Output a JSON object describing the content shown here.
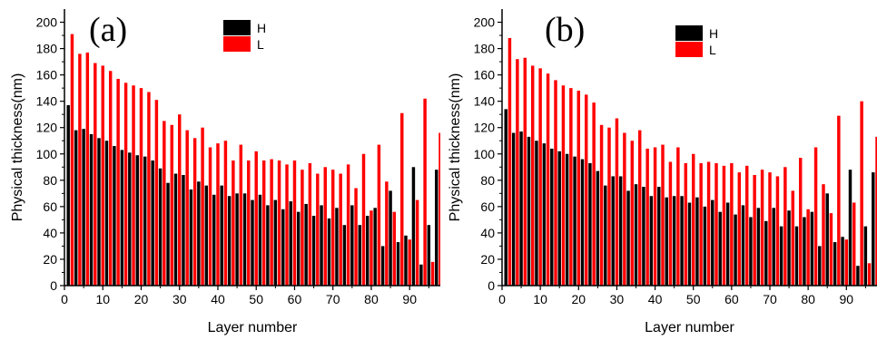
{
  "chart_data": [
    {
      "type": "bar",
      "panel_label": "(a)",
      "xlabel": "Layer number",
      "ylabel": "Physical thickness(nm)",
      "xlim": [
        0,
        98
      ],
      "ylim": [
        0,
        210
      ],
      "xticks": [
        0,
        10,
        20,
        30,
        40,
        50,
        60,
        70,
        80,
        90
      ],
      "yticks": [
        0,
        20,
        40,
        60,
        80,
        100,
        120,
        140,
        160,
        180,
        200
      ],
      "legend": {
        "position": "top-center"
      },
      "series": [
        {
          "name": "H",
          "color": "#000000",
          "x": [
            1,
            3,
            5,
            7,
            9,
            11,
            13,
            15,
            17,
            19,
            21,
            23,
            25,
            27,
            29,
            31,
            33,
            35,
            37,
            39,
            41,
            43,
            45,
            47,
            49,
            51,
            53,
            55,
            57,
            59,
            61,
            63,
            65,
            67,
            69,
            71,
            73,
            75,
            77,
            79,
            81,
            83,
            85,
            87,
            89,
            91,
            93,
            95,
            97
          ],
          "values": [
            137,
            118,
            119,
            115,
            112,
            110,
            106,
            103,
            101,
            99,
            98,
            95,
            89,
            78,
            85,
            84,
            73,
            79,
            76,
            69,
            76,
            68,
            70,
            70,
            65,
            69,
            61,
            65,
            58,
            64,
            56,
            62,
            53,
            61,
            51,
            59,
            46,
            61,
            46,
            53,
            59,
            30,
            72,
            33,
            38,
            90,
            16,
            46,
            88
          ]
        },
        {
          "name": "L",
          "color": "#ff0000",
          "x": [
            2,
            4,
            6,
            8,
            10,
            12,
            14,
            16,
            18,
            20,
            22,
            24,
            26,
            28,
            30,
            32,
            34,
            36,
            38,
            40,
            42,
            44,
            46,
            48,
            50,
            52,
            54,
            56,
            58,
            60,
            62,
            64,
            66,
            68,
            70,
            72,
            74,
            76,
            78,
            80,
            82,
            84,
            86,
            88,
            90,
            92,
            94,
            96,
            98
          ],
          "values": [
            191,
            176,
            177,
            169,
            167,
            163,
            157,
            154,
            152,
            150,
            147,
            141,
            125,
            122,
            130,
            118,
            112,
            120,
            105,
            108,
            110,
            95,
            107,
            95,
            102,
            95,
            96,
            95,
            92,
            95,
            88,
            93,
            85,
            90,
            88,
            85,
            92,
            74,
            100,
            57,
            107,
            79,
            56,
            131,
            35,
            65,
            142,
            18,
            116
          ]
        }
      ]
    },
    {
      "type": "bar",
      "panel_label": "(b)",
      "xlabel": "Layer number",
      "ylabel": "Physical thickness(nm)",
      "xlim": [
        0,
        98
      ],
      "ylim": [
        0,
        210
      ],
      "xticks": [
        0,
        10,
        20,
        30,
        40,
        50,
        60,
        70,
        80,
        90
      ],
      "yticks": [
        0,
        20,
        40,
        60,
        80,
        100,
        120,
        140,
        160,
        180,
        200
      ],
      "legend": {
        "position": "top-right"
      },
      "series": [
        {
          "name": "H",
          "color": "#000000",
          "x": [
            1,
            3,
            5,
            7,
            9,
            11,
            13,
            15,
            17,
            19,
            21,
            23,
            25,
            27,
            29,
            31,
            33,
            35,
            37,
            39,
            41,
            43,
            45,
            47,
            49,
            51,
            53,
            55,
            57,
            59,
            61,
            63,
            65,
            67,
            69,
            71,
            73,
            75,
            77,
            79,
            81,
            83,
            85,
            87,
            89,
            91,
            93,
            95,
            97
          ],
          "values": [
            134,
            116,
            117,
            113,
            110,
            108,
            104,
            102,
            100,
            98,
            96,
            93,
            87,
            76,
            83,
            83,
            72,
            77,
            75,
            68,
            75,
            67,
            68,
            68,
            63,
            67,
            60,
            65,
            56,
            63,
            54,
            61,
            52,
            59,
            49,
            59,
            45,
            57,
            45,
            52,
            56,
            30,
            70,
            33,
            37,
            88,
            15,
            45,
            86
          ]
        },
        {
          "name": "L",
          "color": "#ff0000",
          "x": [
            2,
            4,
            6,
            8,
            10,
            12,
            14,
            16,
            18,
            20,
            22,
            24,
            26,
            28,
            30,
            32,
            34,
            36,
            38,
            40,
            42,
            44,
            46,
            48,
            50,
            52,
            54,
            56,
            58,
            60,
            62,
            64,
            66,
            68,
            70,
            72,
            74,
            76,
            78,
            80,
            82,
            84,
            86,
            88,
            90,
            92,
            94,
            96,
            98
          ],
          "values": [
            188,
            172,
            173,
            167,
            165,
            161,
            156,
            152,
            150,
            148,
            145,
            139,
            122,
            120,
            127,
            116,
            110,
            118,
            104,
            105,
            107,
            94,
            105,
            93,
            100,
            93,
            94,
            93,
            91,
            93,
            86,
            91,
            84,
            88,
            86,
            83,
            90,
            72,
            97,
            58,
            105,
            77,
            55,
            129,
            35,
            63,
            140,
            17,
            113
          ]
        }
      ]
    }
  ]
}
